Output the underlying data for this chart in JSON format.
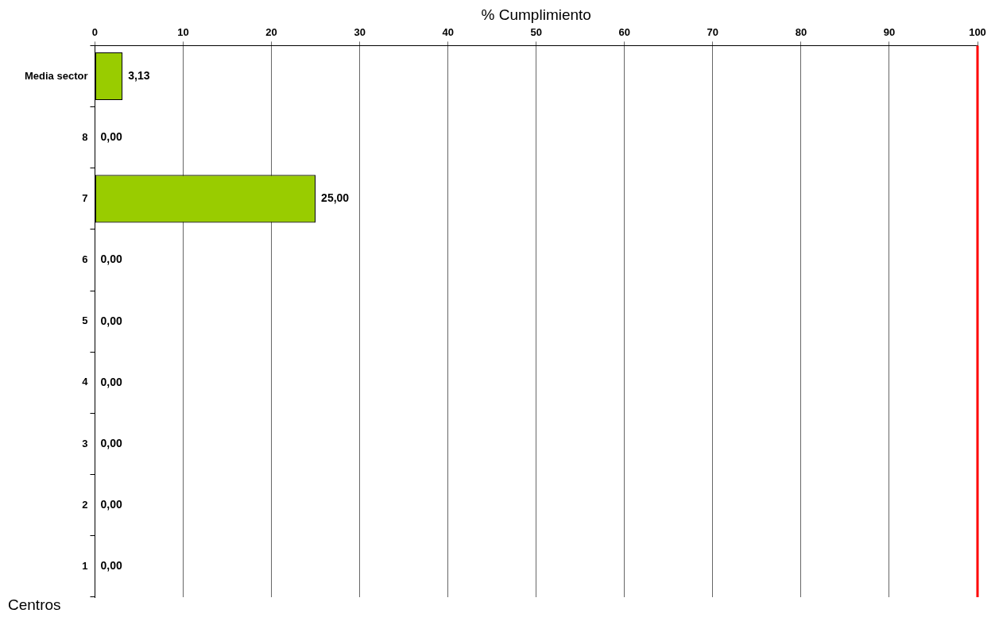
{
  "chart_data": {
    "type": "bar",
    "orientation": "horizontal",
    "xlabel": "% Cumplimiento",
    "ylabel": "Centros",
    "categories": [
      "Media sector",
      "8",
      "7",
      "6",
      "5",
      "4",
      "3",
      "2",
      "1"
    ],
    "values": [
      3.13,
      0,
      25,
      0,
      0,
      0,
      0,
      0,
      0
    ],
    "value_labels": [
      "3,13",
      "0,00",
      "25,00",
      "0,00",
      "0,00",
      "0,00",
      "0,00",
      "0,00",
      "0,00"
    ],
    "color": "#99cc00",
    "xlim": [
      0,
      100
    ],
    "xticks": [
      0,
      10,
      20,
      30,
      40,
      50,
      60,
      70,
      80,
      90,
      100
    ],
    "grid": "x",
    "legend": false,
    "ref_lines": [
      {
        "axis": "x",
        "value": 100,
        "color": "#ff0000"
      }
    ]
  }
}
